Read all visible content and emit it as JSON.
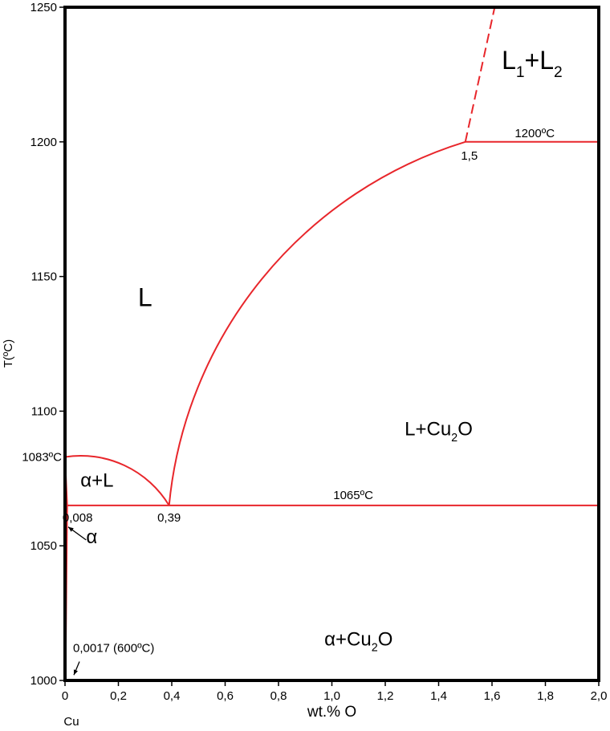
{
  "chart_data": {
    "type": "line",
    "title": "",
    "xlabel": "wt.% O",
    "ylabel": "T(ºC)",
    "x_origin_label": "Cu",
    "xlim": [
      0,
      2.0
    ],
    "ylim": [
      1000,
      1250
    ],
    "xticks": [
      0,
      0.2,
      0.4,
      0.6,
      0.8,
      1.0,
      1.2,
      1.4,
      1.6,
      1.8,
      2.0
    ],
    "xtick_labels": [
      "0",
      "0,2",
      "0,4",
      "0,6",
      "0,8",
      "1,0",
      "1,2",
      "1,4",
      "1,6",
      "1,8",
      "2,0"
    ],
    "yticks": [
      1000,
      1050,
      1100,
      1150,
      1200,
      1250
    ],
    "ytick_labels": [
      "1000",
      "1050",
      "1100",
      "1150",
      "1200",
      "1250"
    ],
    "line_color": "#e8262b",
    "series": [
      {
        "x": [
          0,
          0.39
        ],
        "y": [
          1083,
          1065
        ],
        "curve": "arc"
      },
      {
        "x": [
          0,
          0.008
        ],
        "y": [
          1083,
          1065
        ]
      },
      {
        "x": [
          0.008,
          0.0017
        ],
        "y": [
          1065,
          1000
        ]
      },
      {
        "x": [
          0.008,
          2.0
        ],
        "y": [
          1065,
          1065
        ]
      },
      {
        "x": [
          0.39,
          1.5
        ],
        "y": [
          1065,
          1200
        ],
        "curve": "arc"
      },
      {
        "x": [
          1.5,
          2.0
        ],
        "y": [
          1200,
          1200
        ]
      },
      {
        "x": [
          1.5,
          1.61
        ],
        "y": [
          1200,
          1250
        ],
        "dashed": true
      }
    ],
    "annotations": [
      {
        "text": "1083ºC",
        "x": 0,
        "y": 1083
      },
      {
        "text": "0,008",
        "x": 0.008,
        "y": 1065
      },
      {
        "text": "0,39",
        "x": 0.39,
        "y": 1065
      },
      {
        "text": "1065ºC",
        "x": 1.08,
        "y": 1065
      },
      {
        "text": "1,5",
        "x": 1.5,
        "y": 1200
      },
      {
        "text": "1200ºC",
        "x": 1.76,
        "y": 1200
      },
      {
        "text": "0,0017 (600ºC)",
        "x": 0.0017,
        "y": 1010
      }
    ],
    "regions": [
      {
        "main": "L",
        "sub": "",
        "suffix": "",
        "x": 0.3,
        "y": 1139
      },
      {
        "main": "L",
        "sub": "1",
        "suffix": "+L",
        "sub2": "2",
        "x": 1.75,
        "y": 1227
      },
      {
        "main": "L+Cu",
        "sub": "2",
        "suffix": "O",
        "x": 1.4,
        "y": 1091
      },
      {
        "main": "α+L",
        "sub": "",
        "suffix": "",
        "x": 0.12,
        "y": 1072
      },
      {
        "main": "α",
        "sub": "",
        "suffix": "",
        "x": 0.1,
        "y": 1051
      },
      {
        "main": "α+Cu",
        "sub": "2",
        "suffix": "O",
        "x": 1.1,
        "y": 1013
      }
    ]
  }
}
